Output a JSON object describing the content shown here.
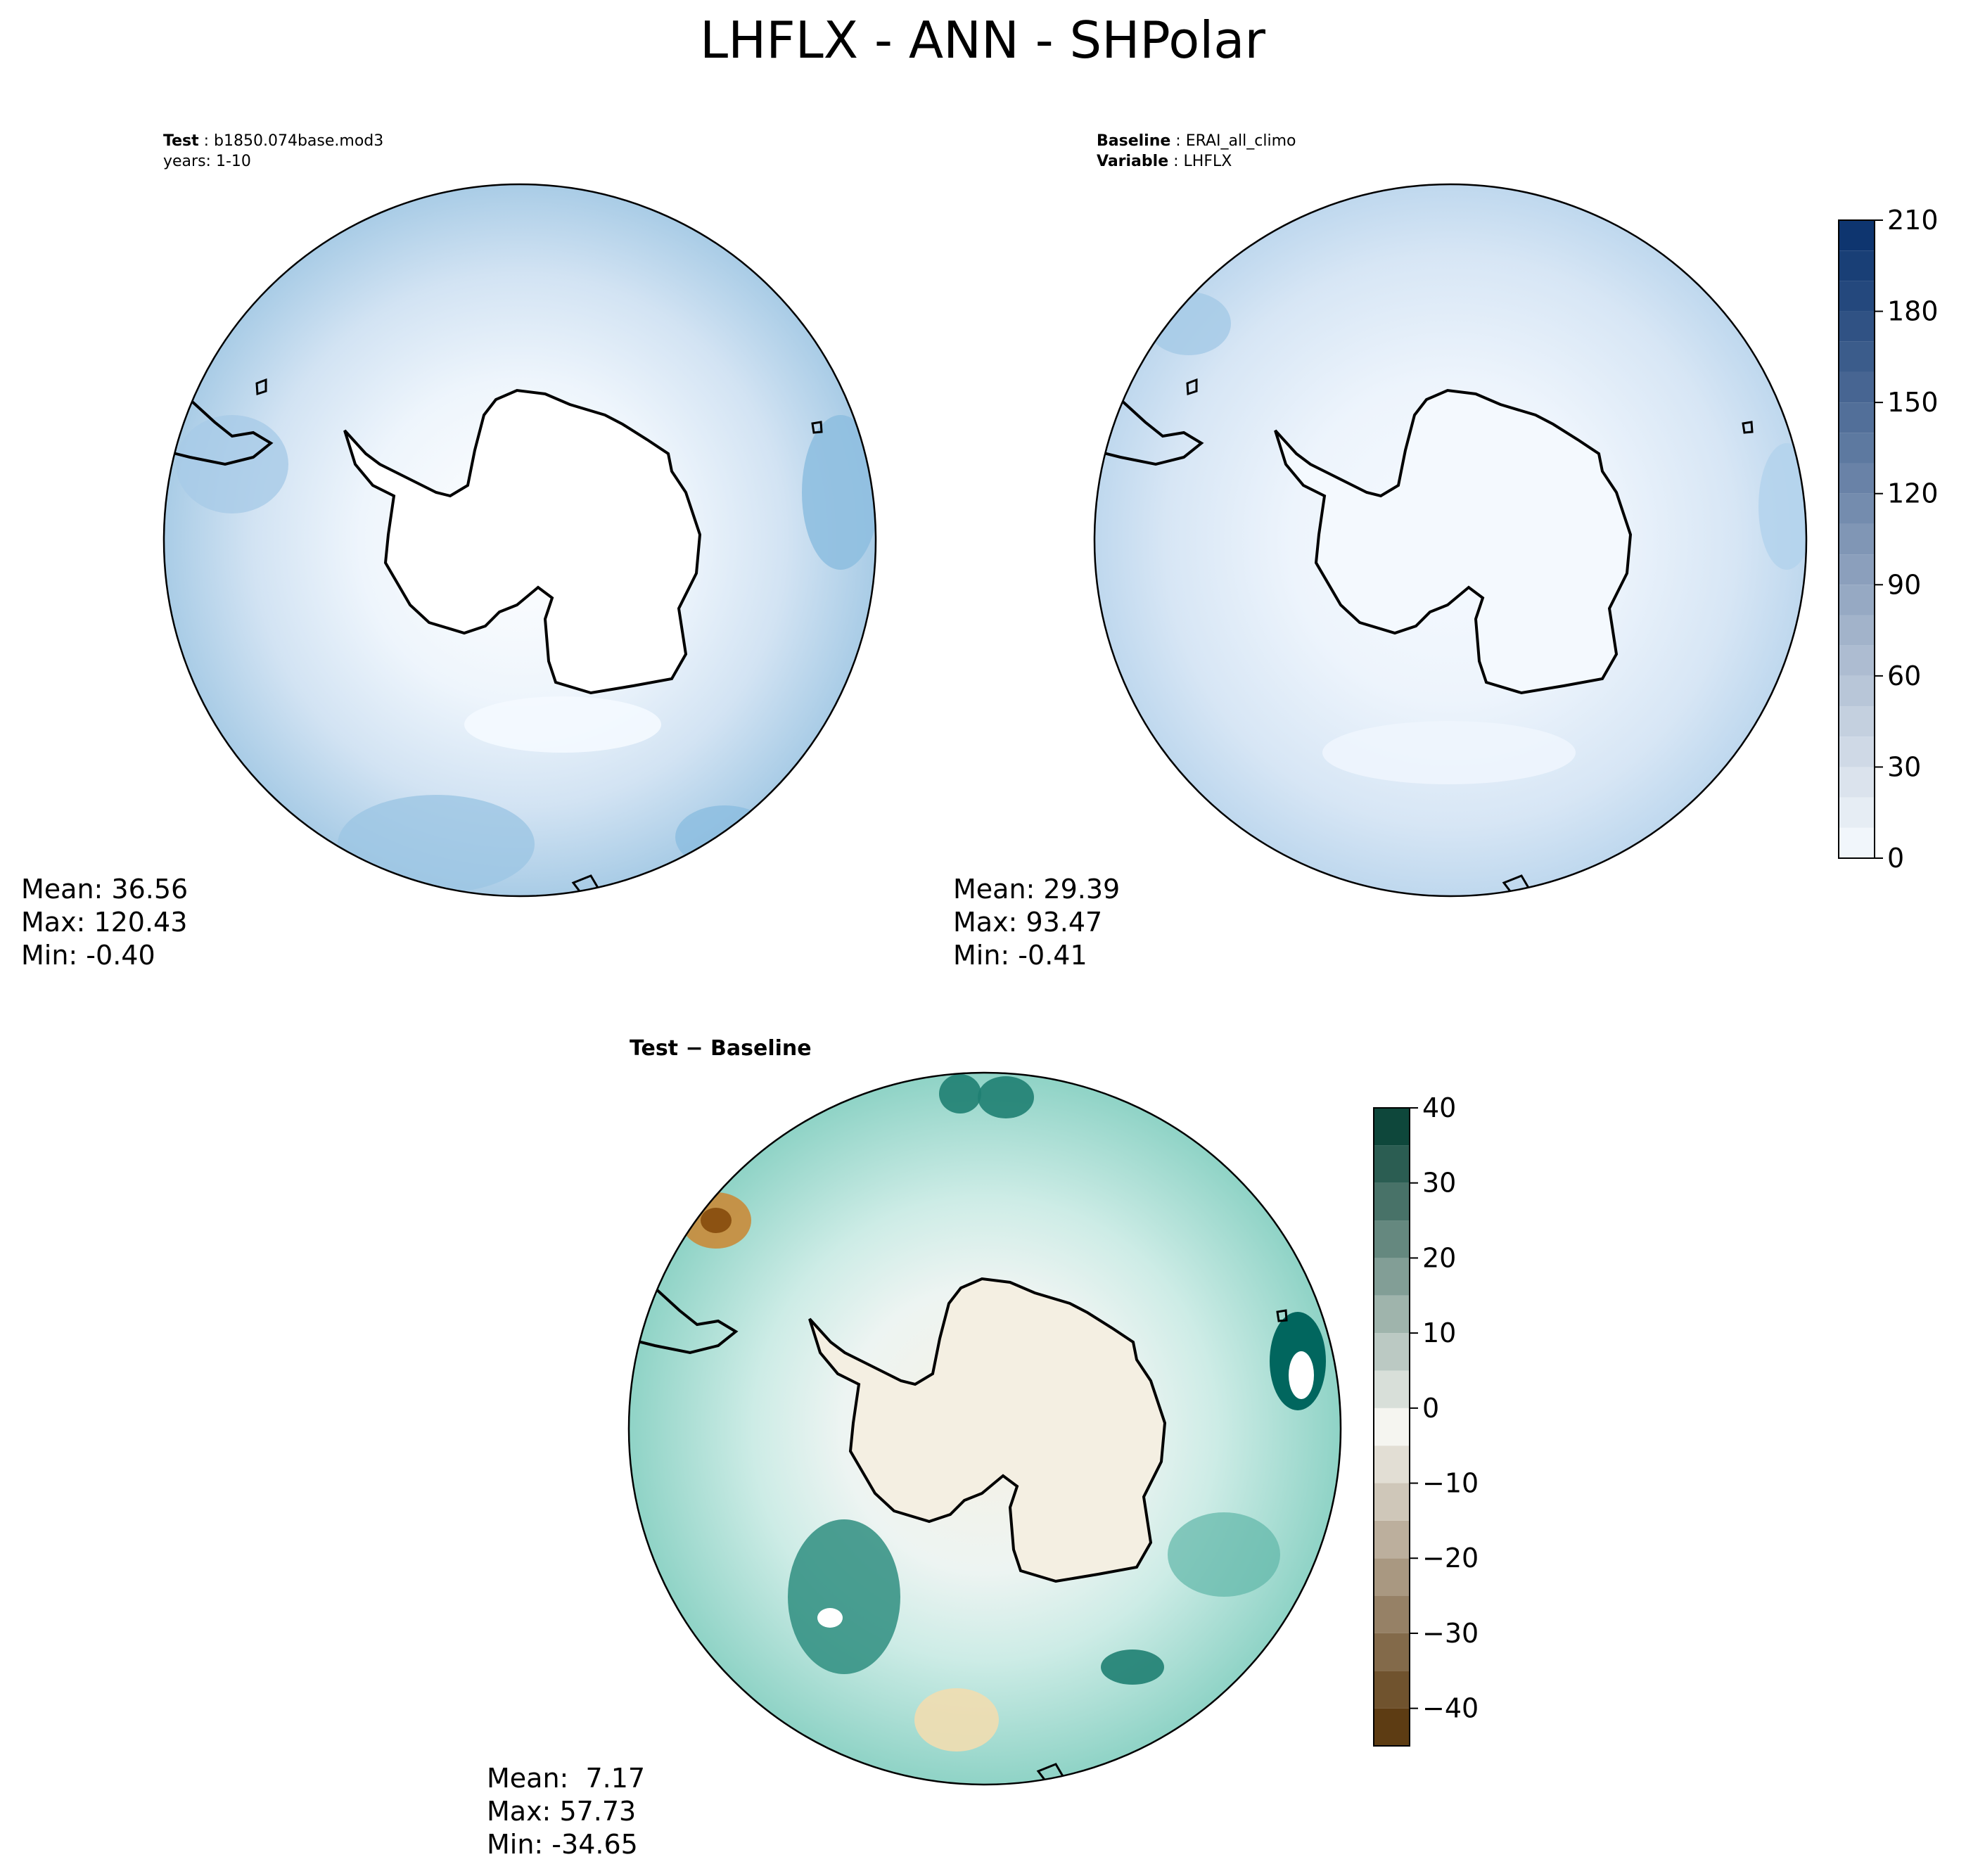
{
  "figure": {
    "title": "LHFLX - ANN - SHPolar"
  },
  "panels": [
    {
      "id": "test",
      "header": [
        {
          "bold": "Test",
          "sep": " : ",
          "text": "b1850.074base.mod3"
        },
        {
          "bold": "",
          "sep": "",
          "text": "years: 1-10"
        }
      ],
      "stats": [
        "Mean: 36.56",
        "Max: 120.43",
        "Min: -0.40"
      ]
    },
    {
      "id": "baseline",
      "header": [
        {
          "bold": "Baseline",
          "sep": " : ",
          "text": "ERAI_all_climo"
        },
        {
          "bold": "Variable",
          "sep": " : ",
          "text": "LHFLX"
        }
      ],
      "stats": [
        "Mean: 29.39",
        "Max: 93.47",
        "Min: -0.41"
      ]
    },
    {
      "id": "diff",
      "header": [
        {
          "bold": "Test − Baseline",
          "sep": "",
          "text": ""
        }
      ],
      "stats": [
        "Mean:  7.17",
        "Max: 57.73",
        "Min: -34.65"
      ]
    }
  ],
  "chart_data": [
    {
      "type": "heatmap",
      "projection": "south polar stereographic",
      "region": "SHPolar",
      "variable": "LHFLX",
      "season": "ANN",
      "panel": "test",
      "stats": {
        "mean": 36.56,
        "max": 120.43,
        "min": -0.4
      },
      "colorbar": {
        "min": 0,
        "max": 210,
        "step": 10,
        "ticks": [
          0,
          30,
          60,
          90,
          120,
          150,
          180,
          210
        ],
        "colormap": [
          "#f7fbff",
          "#08306b"
        ]
      }
    },
    {
      "type": "heatmap",
      "projection": "south polar stereographic",
      "region": "SHPolar",
      "variable": "LHFLX",
      "season": "ANN",
      "panel": "baseline",
      "stats": {
        "mean": 29.39,
        "max": 93.47,
        "min": -0.41
      },
      "colorbar": {
        "min": 0,
        "max": 210,
        "step": 10,
        "ticks": [
          0,
          30,
          60,
          90,
          120,
          150,
          180,
          210
        ],
        "colormap": [
          "#f7fbff",
          "#08306b"
        ]
      }
    },
    {
      "type": "heatmap",
      "projection": "south polar stereographic",
      "region": "SHPolar",
      "variable": "LHFLX",
      "season": "ANN",
      "panel": "diff",
      "stats": {
        "mean": 7.17,
        "max": 57.73,
        "min": -34.65
      },
      "colorbar": {
        "min": -45,
        "max": 40,
        "step": 5,
        "ticks": [
          40,
          30,
          20,
          10,
          0,
          -10,
          -20,
          -30,
          -40
        ],
        "colormap": [
          "#543005",
          "#f5f5f0",
          "#003c30"
        ]
      }
    }
  ]
}
